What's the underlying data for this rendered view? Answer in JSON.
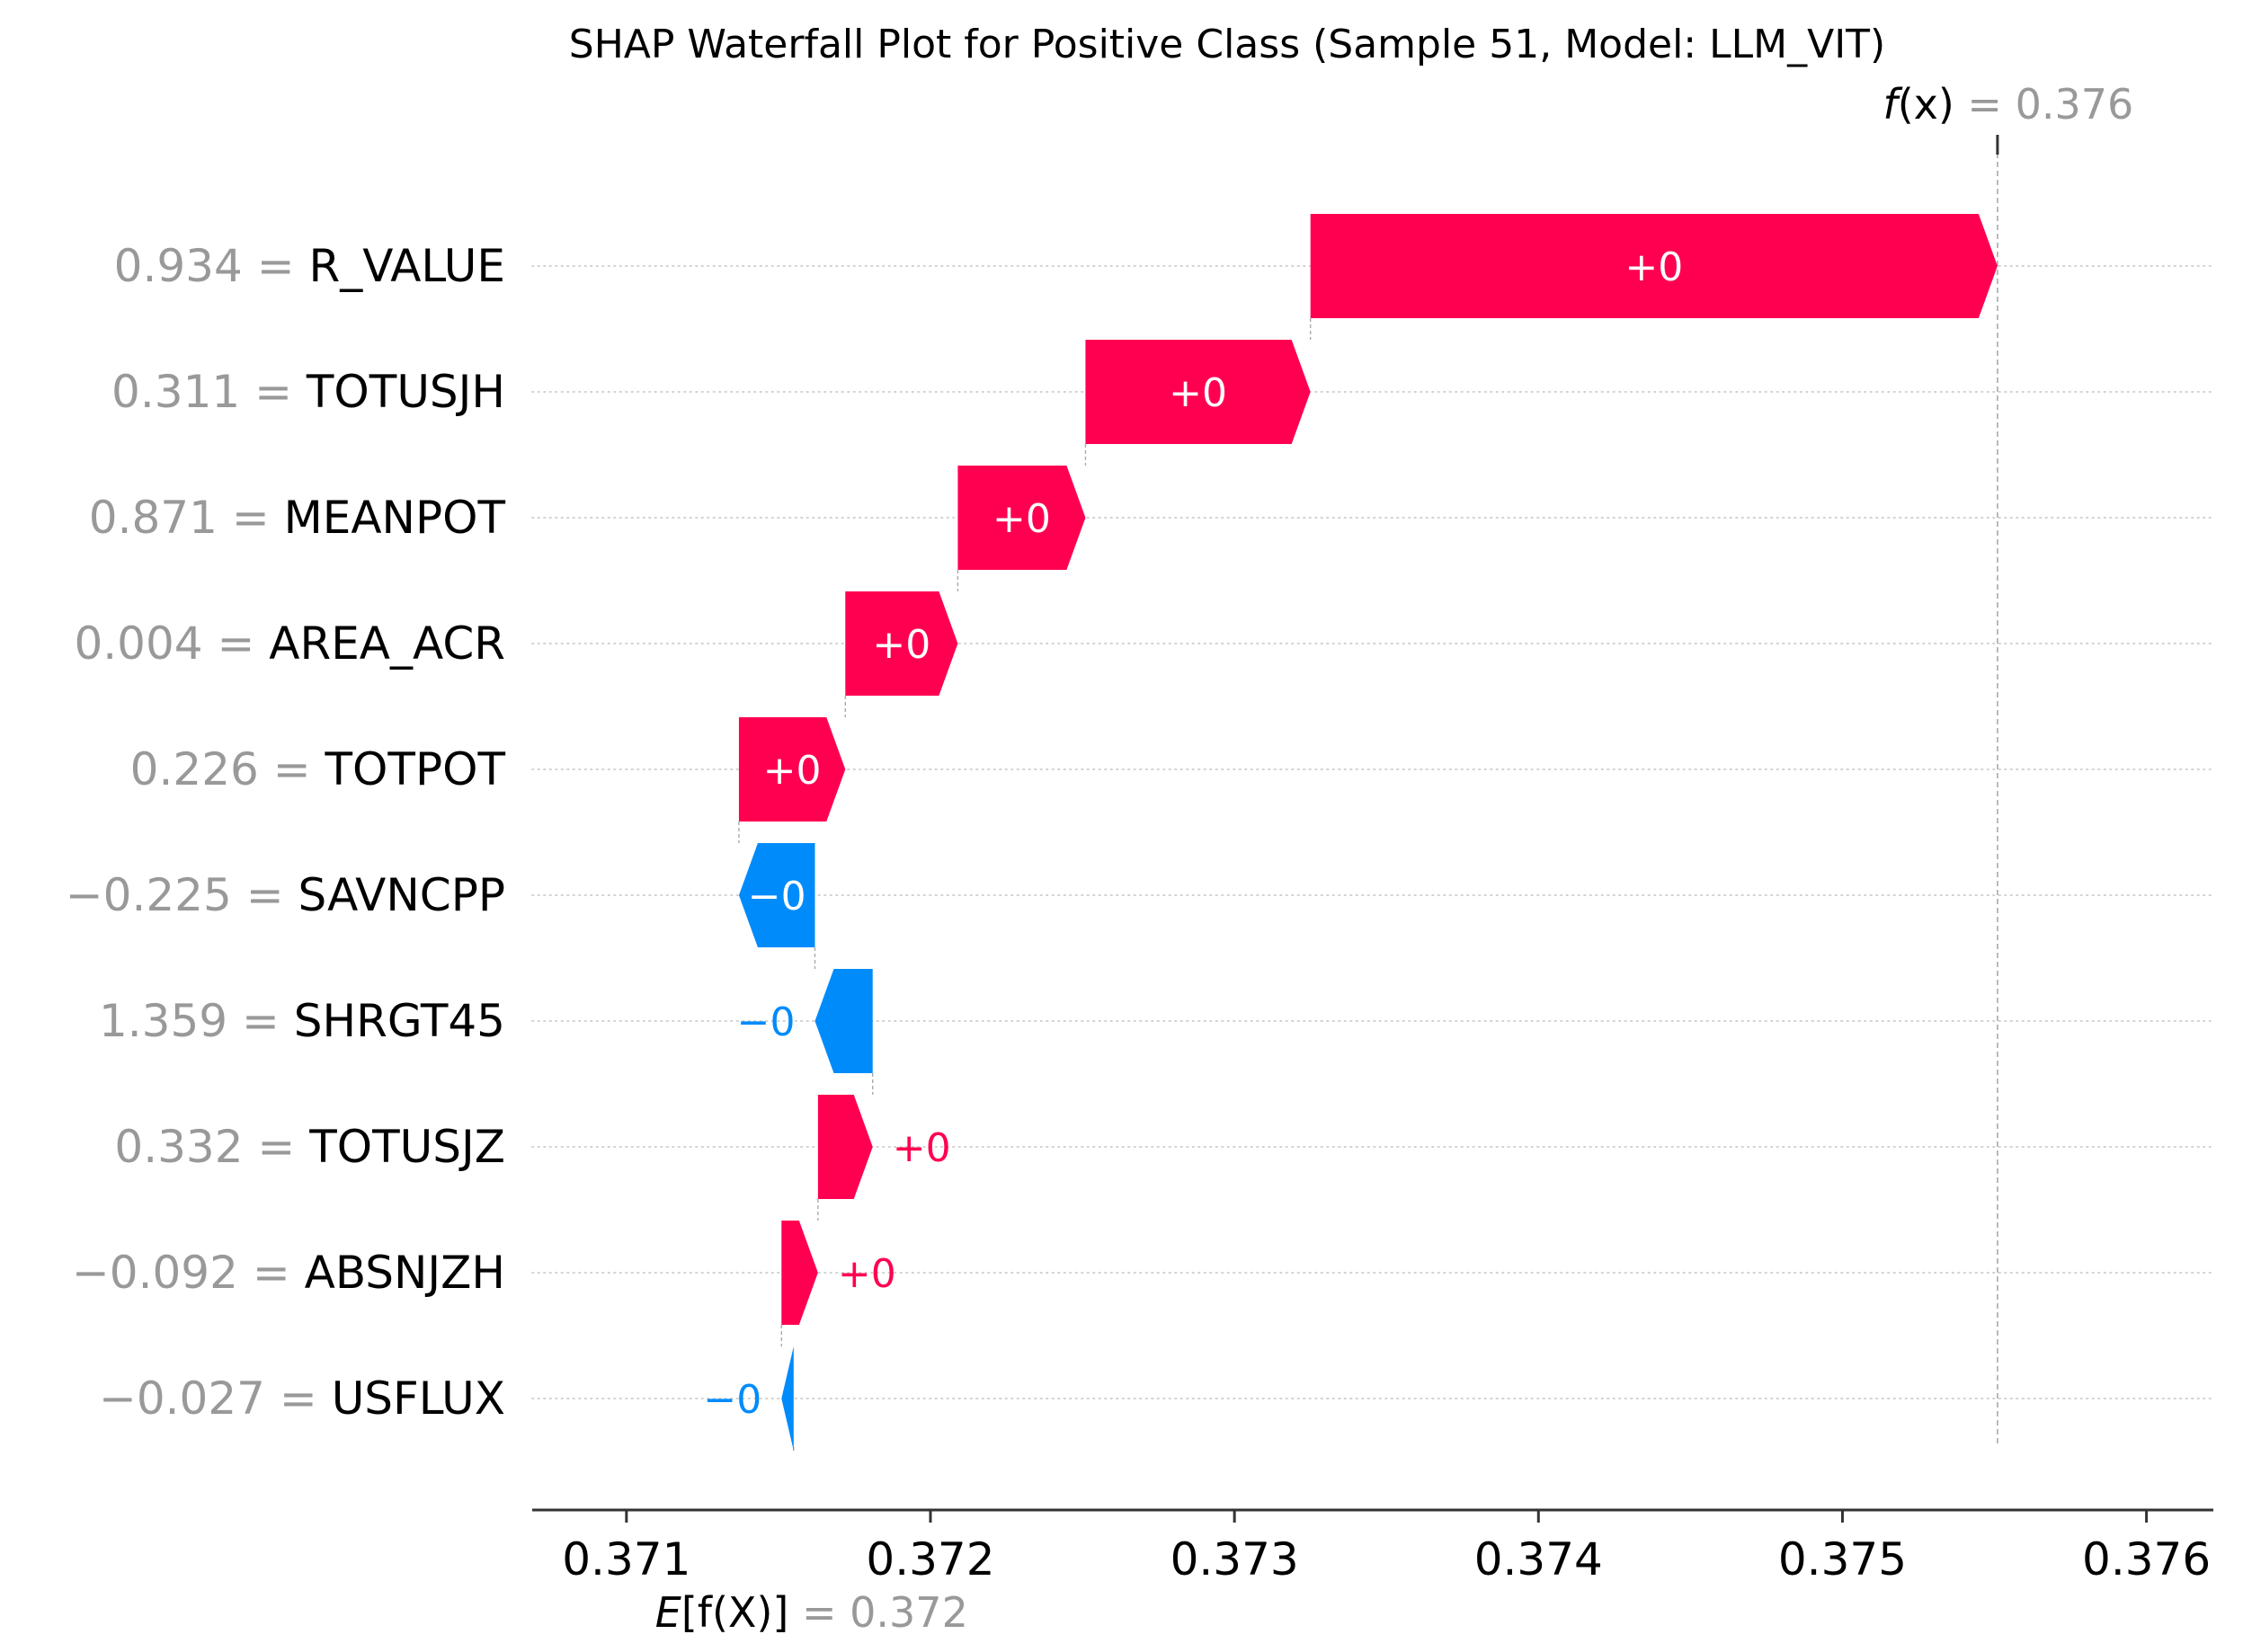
{
  "chart_data": {
    "type": "waterfall",
    "title": "SHAP Waterfall Plot for Positive Class (Sample 51, Model: LLM_VIT)",
    "xlim": [
      0.37069,
      0.37622
    ],
    "xticks": [
      0.371,
      0.372,
      0.373,
      0.374,
      0.375,
      0.376
    ],
    "xtick_labels": [
      "0.371",
      "0.372",
      "0.373",
      "0.374",
      "0.375",
      "0.376"
    ],
    "grid": "dotted horizontal",
    "base_value": 0.37155,
    "output_value": 0.37551,
    "fx_label": {
      "prefix": "f",
      "arg": "(x)",
      "eq": " = ",
      "value": "0.376"
    },
    "efx_label": {
      "prefix": "E",
      "arg": "[f(X)]",
      "eq": " = ",
      "value": "0.372"
    },
    "features": [
      {
        "name": "R_VALUE",
        "feature_value": "0.934",
        "start": 0.37325,
        "end": 0.37551,
        "label": "+0"
      },
      {
        "name": "TOTUSJH",
        "feature_value": "0.311",
        "start": 0.37251,
        "end": 0.37325,
        "label": "+0"
      },
      {
        "name": "MEANPOT",
        "feature_value": "0.871",
        "start": 0.37209,
        "end": 0.37251,
        "label": "+0"
      },
      {
        "name": "AREA_ACR",
        "feature_value": "0.004",
        "start": 0.37172,
        "end": 0.37209,
        "label": "+0"
      },
      {
        "name": "TOTPOT",
        "feature_value": "0.226",
        "start": 0.37137,
        "end": 0.37172,
        "label": "+0"
      },
      {
        "name": "SAVNCPP",
        "feature_value": "−0.225",
        "start": 0.37162,
        "end": 0.37137,
        "label": "−0"
      },
      {
        "name": "SHRGT45",
        "feature_value": "1.359",
        "start": 0.37181,
        "end": 0.37162,
        "label": "−0"
      },
      {
        "name": "TOTUSJZ",
        "feature_value": "0.332",
        "start": 0.37163,
        "end": 0.37181,
        "label": "+0"
      },
      {
        "name": "ABSNJZH",
        "feature_value": "−0.092",
        "start": 0.37151,
        "end": 0.37163,
        "label": "+0"
      },
      {
        "name": "USFLUX",
        "feature_value": "−0.027",
        "start": 0.37155,
        "end": 0.37151,
        "label": "−0"
      }
    ],
    "colors": {
      "positive": "#ff0051",
      "negative": "#008bfb",
      "value_text": "#999999",
      "axis": "#333333"
    }
  }
}
